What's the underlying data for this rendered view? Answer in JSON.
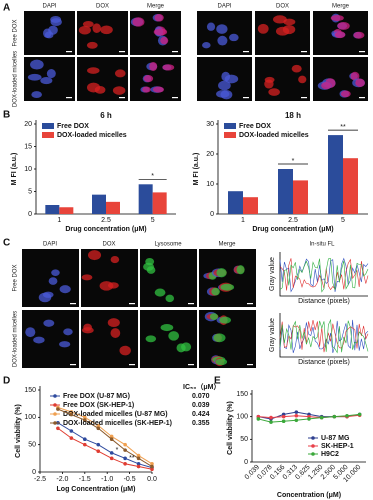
{
  "panel_labels": [
    "A",
    "B",
    "C",
    "D",
    "E"
  ],
  "panel_a": {
    "columns": [
      "DAPI",
      "DOX",
      "Merge"
    ],
    "rows": [
      "Free DOX",
      "DOX-loaded micelles"
    ]
  },
  "panel_c": {
    "columns": [
      "DAPI",
      "DOX",
      "Lysosome",
      "Merge",
      "In-situ FL"
    ],
    "rows": [
      "Free DOX",
      "DOX-loaded micelles"
    ],
    "plot_y_label": "Gray value",
    "plot_x_label": "Distance (pixels)"
  },
  "chart_data": [
    {
      "type": "bar",
      "title": "6 h",
      "y_label": "M FI (a.u.)",
      "x_label": "Drug concentration (μM)",
      "categories": [
        "1",
        "2.5",
        "5"
      ],
      "series": [
        {
          "name": "Free DOX",
          "color": "#2b4c9b",
          "values": [
            2,
            4.3,
            6.6
          ]
        },
        {
          "name": "DOX-loaded micelles",
          "color": "#e8443a",
          "values": [
            1.5,
            2.7,
            4.8
          ]
        }
      ],
      "ylim": [
        0,
        20
      ],
      "yticks": [
        0,
        5,
        10,
        15,
        20
      ],
      "annotations": [
        "*"
      ],
      "legend": "upper left"
    },
    {
      "type": "bar",
      "title": "18 h",
      "y_label": "M FI (a.u.)",
      "x_label": "Drug concentration (μM)",
      "categories": [
        "1",
        "2.5",
        "5"
      ],
      "series": [
        {
          "name": "Free DOX",
          "color": "#2b4c9b",
          "values": [
            7.6,
            15,
            26.3
          ]
        },
        {
          "name": "DOX-loaded micelles",
          "color": "#e8443a",
          "values": [
            5.6,
            11.2,
            18.6
          ]
        }
      ],
      "ylim": [
        0,
        30
      ],
      "yticks": [
        0,
        10,
        20,
        30
      ],
      "annotations": [
        "*",
        "**"
      ],
      "legend": "upper left"
    },
    {
      "type": "line",
      "x_label": "Log Concentration (μM)",
      "y_label": "Cell viability (%)",
      "x": [
        -2.1,
        -1.8,
        -1.5,
        -1.2,
        -0.9,
        -0.6,
        -0.3,
        0
      ],
      "series": [
        {
          "name": "Free DOX (U-87 MG)",
          "color": "#2e4a9e",
          "values": [
            90,
            75,
            60,
            50,
            35,
            25,
            15,
            8
          ]
        },
        {
          "name": "Free DOX (SK-HEP-1)",
          "color": "#e03c31",
          "values": [
            80,
            62,
            50,
            38,
            25,
            15,
            10,
            5
          ]
        },
        {
          "name": "DOX-loaded micelles (U-87 MG)",
          "color": "#f0a050",
          "values": [
            118,
            110,
            100,
            85,
            65,
            50,
            30,
            15
          ]
        },
        {
          "name": "DOX-loaded micelles (SK-HEP-1)",
          "color": "#8b5a2b",
          "values": [
            115,
            105,
            95,
            80,
            60,
            40,
            25,
            10
          ]
        }
      ],
      "xlim": [
        -2.5,
        0
      ],
      "xticks": [
        -2.5,
        {
          "value": -2,
          "label": "-2.0"
        },
        -1.5,
        {
          "value": -1,
          "label": "-1.0"
        },
        -0.5,
        {
          "value": 0,
          "label": "0.0"
        }
      ],
      "ylim": [
        0,
        150
      ],
      "yticks": [
        0,
        50,
        100,
        150
      ],
      "ic50_title": "IC₅₀（μM）",
      "ic50": [
        "0.070",
        "0.039",
        "0.424",
        "0.355"
      ],
      "annotations": [
        "*",
        "**"
      ],
      "legend": "upper right"
    },
    {
      "type": "line",
      "x_label": "Concentration (μM)",
      "y_label": "Cell viability (%)",
      "categories": [
        "0.039",
        "0.078",
        "0.156",
        "0.313",
        "0.625",
        "1.250",
        "2.500",
        "5.000",
        "10.000"
      ],
      "series": [
        {
          "name": "U-87 MG",
          "color": "#2e3f8f",
          "values": [
            100,
            95,
            105,
            110,
            105,
            100,
            100,
            100,
            105
          ]
        },
        {
          "name": "SK-HEP-1",
          "color": "#e8404a",
          "values": [
            100,
            98,
            100,
            102,
            100,
            98,
            100,
            100,
            103
          ]
        },
        {
          "name": "H9C2",
          "color": "#3aa83a",
          "values": [
            95,
            88,
            90,
            92,
            95,
            98,
            100,
            102,
            105
          ]
        }
      ],
      "ylim": [
        0,
        150
      ],
      "yticks": [
        0,
        50,
        100,
        150
      ],
      "legend": "lower right"
    }
  ]
}
